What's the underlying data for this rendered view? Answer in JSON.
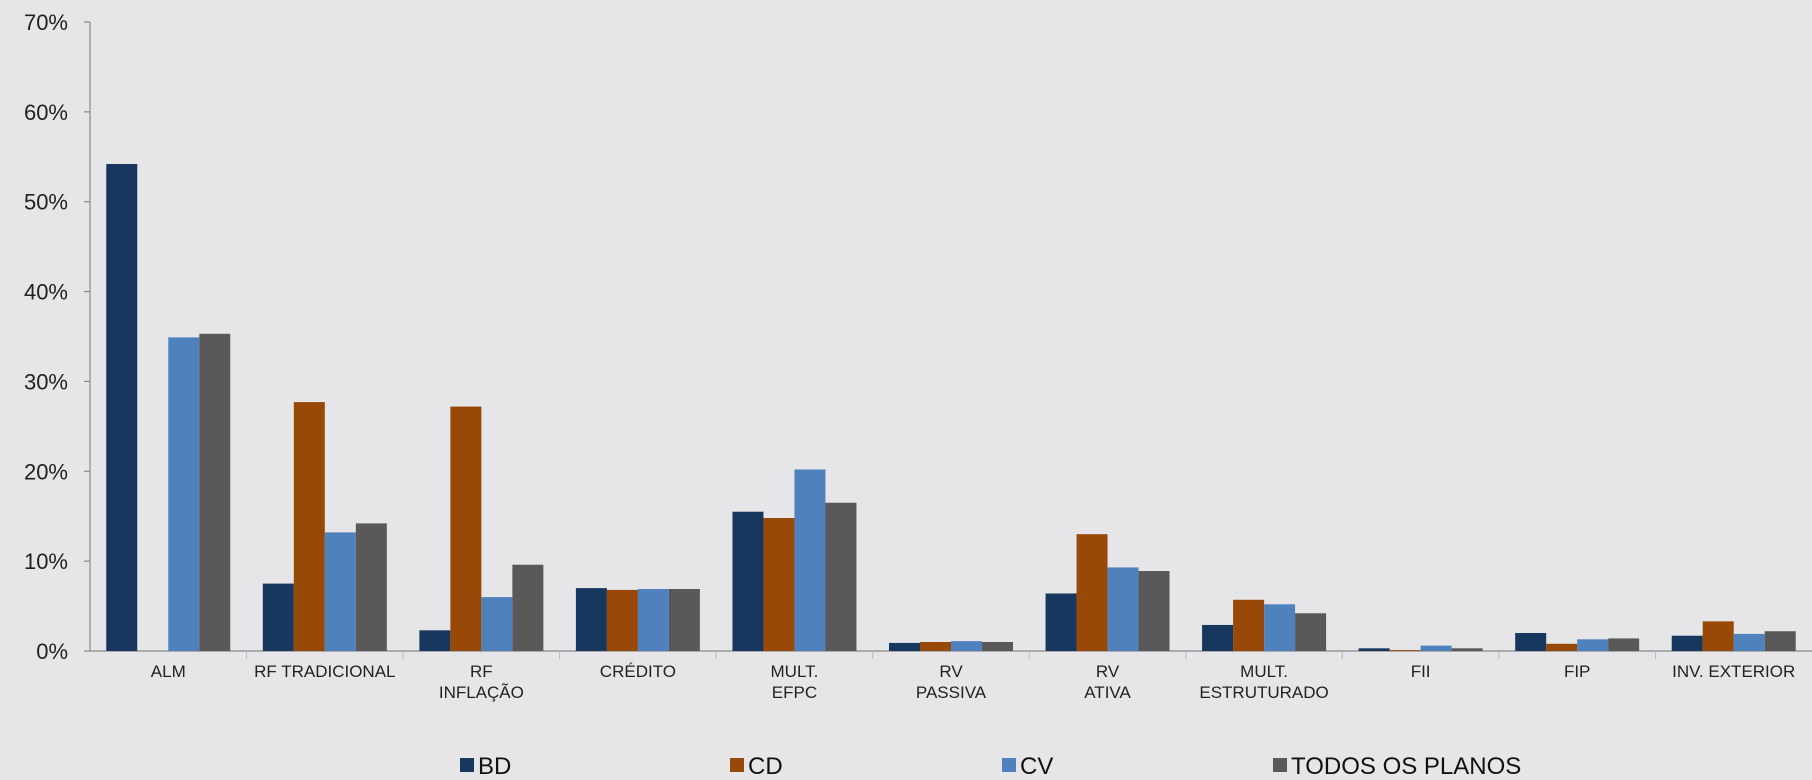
{
  "chart_data": {
    "type": "bar",
    "title": "",
    "xlabel": "",
    "ylabel": "",
    "ylim": [
      0,
      70
    ],
    "yticks": [
      "0%",
      "10%",
      "20%",
      "30%",
      "40%",
      "50%",
      "60%",
      "70%"
    ],
    "categories": [
      [
        "ALM"
      ],
      [
        "RF TRADICIONAL"
      ],
      [
        "RF",
        "INFLAÇÃO"
      ],
      [
        "CRÉDITO"
      ],
      [
        "MULT.",
        "EFPC"
      ],
      [
        "RV",
        "PASSIVA"
      ],
      [
        "RV",
        "ATIVA"
      ],
      [
        "MULT.",
        "ESTRUTURADO"
      ],
      [
        "FII"
      ],
      [
        "FIP"
      ],
      [
        "INV. EXTERIOR"
      ]
    ],
    "series": [
      {
        "name": "BD",
        "color": "#17375e",
        "values": [
          54.2,
          7.5,
          2.3,
          7.0,
          15.5,
          0.9,
          6.4,
          2.9,
          0.3,
          2.0,
          1.7
        ]
      },
      {
        "name": "CD",
        "color": "#984807",
        "values": [
          0.0,
          27.7,
          27.2,
          6.8,
          14.8,
          1.0,
          13.0,
          5.7,
          0.1,
          0.8,
          3.3
        ]
      },
      {
        "name": "CV",
        "color": "#4f81bd",
        "values": [
          34.9,
          13.2,
          6.0,
          6.9,
          20.2,
          1.1,
          9.3,
          5.2,
          0.6,
          1.3,
          1.9
        ]
      },
      {
        "name": "TODOS OS PLANOS",
        "color": "#595959",
        "values": [
          35.3,
          14.2,
          9.6,
          6.9,
          16.5,
          1.0,
          8.9,
          4.2,
          0.3,
          1.4,
          2.2
        ]
      }
    ],
    "legend_position": "bottom",
    "grid": false
  }
}
